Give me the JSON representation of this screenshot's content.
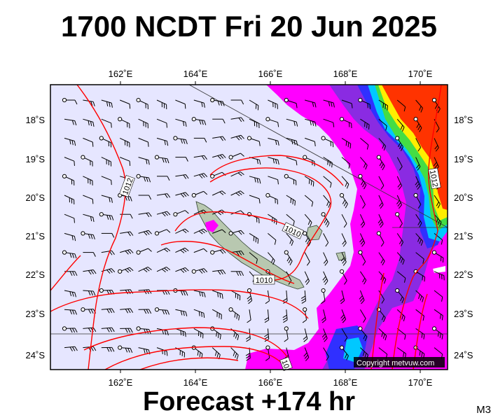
{
  "header": {
    "title": "1700 NCDT Fri 20 Jun 2025"
  },
  "footer": {
    "forecast": "Forecast +174 hr",
    "code": "M3"
  },
  "map": {
    "lon_labels": [
      "162˚E",
      "164˚E",
      "166˚E",
      "168˚E",
      "170˚E"
    ],
    "lat_labels": [
      "18˚S",
      "19˚S",
      "20˚S",
      "21˚S",
      "22˚S",
      "23˚S",
      "24˚S"
    ],
    "isobar_labels": [
      "1012",
      "1010",
      "1010",
      "1012",
      "10"
    ],
    "copyright": "Copyright metvuw.com",
    "colors": {
      "ocean": "#e6e6ff",
      "isobar": "#ff0000",
      "land": "#b8c8b0",
      "rain_light": "#ff00ff",
      "rain_mid": "#7700ff",
      "rain_heavy": "#ff3300"
    }
  }
}
